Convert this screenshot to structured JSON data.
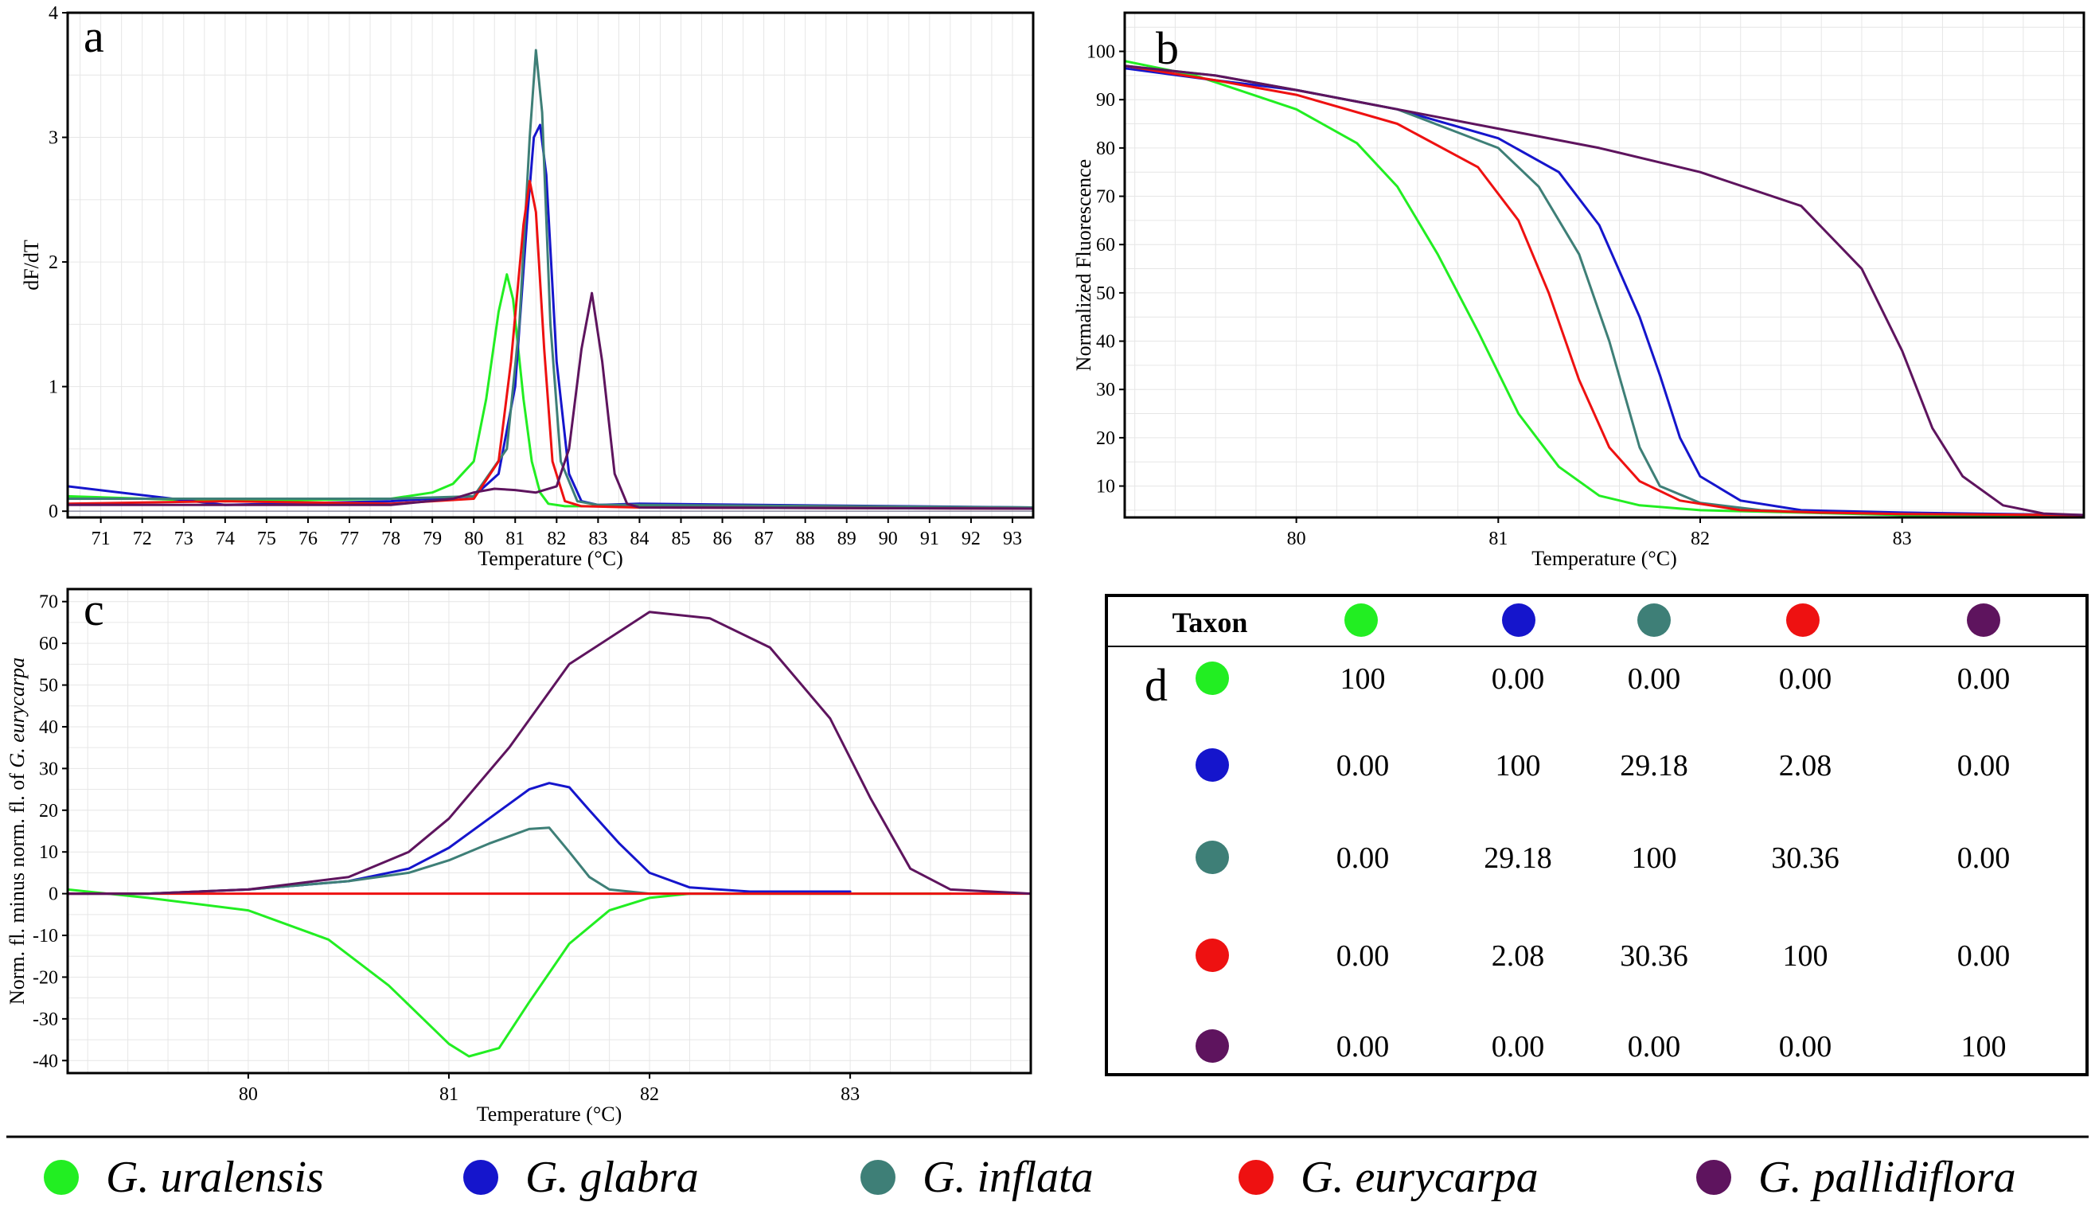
{
  "species": [
    {
      "name": "G. uralensis",
      "color": "#22ee22"
    },
    {
      "name": "G. glabra",
      "color": "#1515cc"
    },
    {
      "name": "G. inflata",
      "color": "#3e7f77"
    },
    {
      "name": "G. eurycarpa",
      "color": "#ee1111"
    },
    {
      "name": "G. pallidiflora",
      "color": "#5e145e"
    }
  ],
  "chart_data": [
    {
      "panel": "a",
      "type": "line",
      "title": "",
      "xlabel": "Temperature (°C)",
      "ylabel": "dF/dT",
      "xlim": [
        70.2,
        93.5
      ],
      "ylim": [
        -0.05,
        4
      ],
      "xticks": [
        71,
        72,
        73,
        74,
        75,
        76,
        77,
        78,
        79,
        80,
        81,
        82,
        83,
        84,
        85,
        86,
        87,
        88,
        89,
        90,
        91,
        92,
        93
      ],
      "yticks": [
        0,
        1,
        2,
        3,
        4
      ],
      "grid": true,
      "series": [
        {
          "name": "G. uralensis",
          "x": [
            70.2,
            74,
            78,
            79,
            79.5,
            80,
            80.3,
            80.6,
            80.8,
            80.95,
            81.2,
            81.4,
            81.6,
            81.8,
            82.2,
            84,
            93.5
          ],
          "y": [
            0.12,
            0.08,
            0.1,
            0.15,
            0.22,
            0.4,
            0.9,
            1.6,
            1.9,
            1.7,
            0.9,
            0.4,
            0.15,
            0.06,
            0.04,
            0.04,
            0.03
          ]
        },
        {
          "name": "G. glabra",
          "x": [
            70.2,
            74,
            78,
            80,
            80.6,
            81,
            81.3,
            81.45,
            81.6,
            81.75,
            82,
            82.3,
            82.6,
            83,
            84,
            93.5
          ],
          "y": [
            0.2,
            0.05,
            0.08,
            0.12,
            0.3,
            1.0,
            2.4,
            3.0,
            3.1,
            2.7,
            1.2,
            0.3,
            0.08,
            0.05,
            0.06,
            0.03
          ]
        },
        {
          "name": "G. inflata",
          "x": [
            70.2,
            74,
            78,
            80,
            80.8,
            81.1,
            81.35,
            81.5,
            81.65,
            81.85,
            82.1,
            82.5,
            83,
            84,
            93.5
          ],
          "y": [
            0.1,
            0.1,
            0.1,
            0.12,
            0.5,
            1.5,
            3.0,
            3.7,
            3.2,
            1.5,
            0.4,
            0.08,
            0.05,
            0.05,
            0.03
          ]
        },
        {
          "name": "G. eurycarpa",
          "x": [
            70.2,
            74,
            78,
            80,
            80.6,
            80.9,
            81.2,
            81.35,
            81.5,
            81.7,
            81.9,
            82.2,
            82.6,
            84,
            93.5
          ],
          "y": [
            0.06,
            0.08,
            0.06,
            0.1,
            0.4,
            1.2,
            2.3,
            2.65,
            2.4,
            1.3,
            0.4,
            0.08,
            0.04,
            0.03,
            0.02
          ]
        },
        {
          "name": "G. pallidiflora",
          "x": [
            70.2,
            74,
            78,
            79.5,
            80,
            80.5,
            81,
            81.5,
            82,
            82.3,
            82.6,
            82.85,
            83.1,
            83.4,
            83.7,
            84,
            93.5
          ],
          "y": [
            0.05,
            0.05,
            0.05,
            0.1,
            0.15,
            0.18,
            0.17,
            0.15,
            0.2,
            0.5,
            1.3,
            1.75,
            1.2,
            0.3,
            0.06,
            0.03,
            0.02
          ]
        }
      ]
    },
    {
      "panel": "b",
      "type": "line",
      "title": "",
      "xlabel": "Temperature (°C)",
      "ylabel": "Normalized Fluorescence",
      "xlim": [
        79.15,
        83.9
      ],
      "ylim": [
        3.5,
        108
      ],
      "xticks": [
        80,
        81,
        82,
        83
      ],
      "yticks": [
        10,
        20,
        30,
        40,
        50,
        60,
        70,
        80,
        90,
        100
      ],
      "grid": true,
      "series": [
        {
          "name": "G. uralensis",
          "x": [
            79.15,
            79.5,
            80,
            80.3,
            80.5,
            80.7,
            80.9,
            81.1,
            81.3,
            81.5,
            81.7,
            82,
            82.5,
            83,
            83.9
          ],
          "y": [
            98,
            95,
            88,
            81,
            72,
            58,
            42,
            25,
            14,
            8,
            6,
            5,
            4.5,
            4,
            3.8
          ]
        },
        {
          "name": "G. glabra",
          "x": [
            79.15,
            79.6,
            80,
            80.5,
            81,
            81.3,
            81.5,
            81.7,
            81.8,
            81.9,
            82,
            82.2,
            82.5,
            83,
            83.9
          ],
          "y": [
            96.5,
            94,
            92,
            88,
            82,
            75,
            64,
            45,
            33,
            20,
            12,
            7,
            5,
            4.5,
            4
          ]
        },
        {
          "name": "G. inflata",
          "x": [
            79.15,
            79.6,
            80,
            80.5,
            81,
            81.2,
            81.4,
            81.55,
            81.7,
            81.8,
            82,
            82.3,
            82.6,
            83,
            83.9
          ],
          "y": [
            97,
            95,
            92,
            88,
            80,
            72,
            58,
            40,
            18,
            10,
            6.5,
            5,
            4.5,
            4.2,
            4
          ]
        },
        {
          "name": "G. eurycarpa",
          "x": [
            79.15,
            79.6,
            80,
            80.5,
            80.9,
            81.1,
            81.25,
            81.4,
            81.55,
            81.7,
            81.9,
            82.2,
            82.6,
            83,
            83.9
          ],
          "y": [
            97,
            94,
            91,
            85,
            76,
            65,
            50,
            32,
            18,
            11,
            7,
            5,
            4.5,
            4.2,
            4
          ]
        },
        {
          "name": "G. pallidiflora",
          "x": [
            79.15,
            79.6,
            80,
            80.5,
            81,
            81.5,
            82,
            82.5,
            82.8,
            83,
            83.15,
            83.3,
            83.5,
            83.7,
            83.9
          ],
          "y": [
            97,
            95,
            92,
            88,
            84,
            80,
            75,
            68,
            55,
            38,
            22,
            12,
            6,
            4.3,
            4
          ]
        }
      ]
    },
    {
      "panel": "c",
      "type": "line",
      "title": "",
      "xlabel": "Temperature (°C)",
      "ylabel": "Norm. fl. minus norm. fl. of G. eurycarpa",
      "xlim": [
        79.1,
        83.9
      ],
      "ylim": [
        -43,
        73
      ],
      "xticks": [
        80,
        81,
        82,
        83
      ],
      "yticks": [
        -40,
        -30,
        -20,
        -10,
        0,
        10,
        20,
        30,
        40,
        50,
        60,
        70
      ],
      "grid": true,
      "series": [
        {
          "name": "G. uralensis",
          "x": [
            79.1,
            79.5,
            80,
            80.4,
            80.7,
            81,
            81.1,
            81.25,
            81.4,
            81.6,
            81.8,
            82,
            82.2,
            82.5,
            83.5
          ],
          "y": [
            1,
            -1,
            -4,
            -11,
            -22,
            -36,
            -39,
            -37,
            -26,
            -12,
            -4,
            -1,
            0,
            0,
            0
          ]
        },
        {
          "name": "G. glabra",
          "x": [
            79.1,
            79.5,
            80,
            80.5,
            80.8,
            81,
            81.2,
            81.4,
            81.5,
            81.6,
            81.7,
            81.85,
            82,
            82.2,
            82.5,
            83
          ],
          "y": [
            0,
            0,
            1,
            3,
            6,
            11,
            18,
            25,
            26.5,
            25.5,
            20,
            12,
            5,
            1.5,
            0.5,
            0.5
          ]
        },
        {
          "name": "G. inflata",
          "x": [
            79.1,
            79.5,
            80,
            80.5,
            80.8,
            81,
            81.2,
            81.4,
            81.5,
            81.6,
            81.7,
            81.8,
            82,
            82.5,
            83
          ],
          "y": [
            0,
            0,
            1,
            3,
            5,
            8,
            12,
            15.5,
            15.8,
            10,
            4,
            1,
            0,
            0,
            0
          ]
        },
        {
          "name": "G. eurycarpa",
          "x": [
            79.1,
            83.9
          ],
          "y": [
            0,
            0
          ]
        },
        {
          "name": "G. pallidiflora",
          "x": [
            79.1,
            79.5,
            80,
            80.5,
            80.8,
            81,
            81.3,
            81.6,
            82,
            82.3,
            82.6,
            82.9,
            83.1,
            83.3,
            83.5,
            83.9
          ],
          "y": [
            0,
            0,
            1,
            4,
            10,
            18,
            35,
            55,
            67.5,
            66,
            59,
            42,
            23,
            6,
            1,
            0
          ]
        }
      ]
    },
    {
      "panel": "d",
      "type": "table",
      "title": "",
      "header": "Taxon",
      "rows": [
        [
          "100",
          "0.00",
          "0.00",
          "0.00",
          "0.00"
        ],
        [
          "0.00",
          "100",
          "29.18",
          "2.08",
          "0.00"
        ],
        [
          "0.00",
          "29.18",
          "100",
          "30.36",
          "0.00"
        ],
        [
          "0.00",
          "2.08",
          "30.36",
          "100",
          "0.00"
        ],
        [
          "0.00",
          "0.00",
          "0.00",
          "0.00",
          "100"
        ]
      ]
    }
  ]
}
